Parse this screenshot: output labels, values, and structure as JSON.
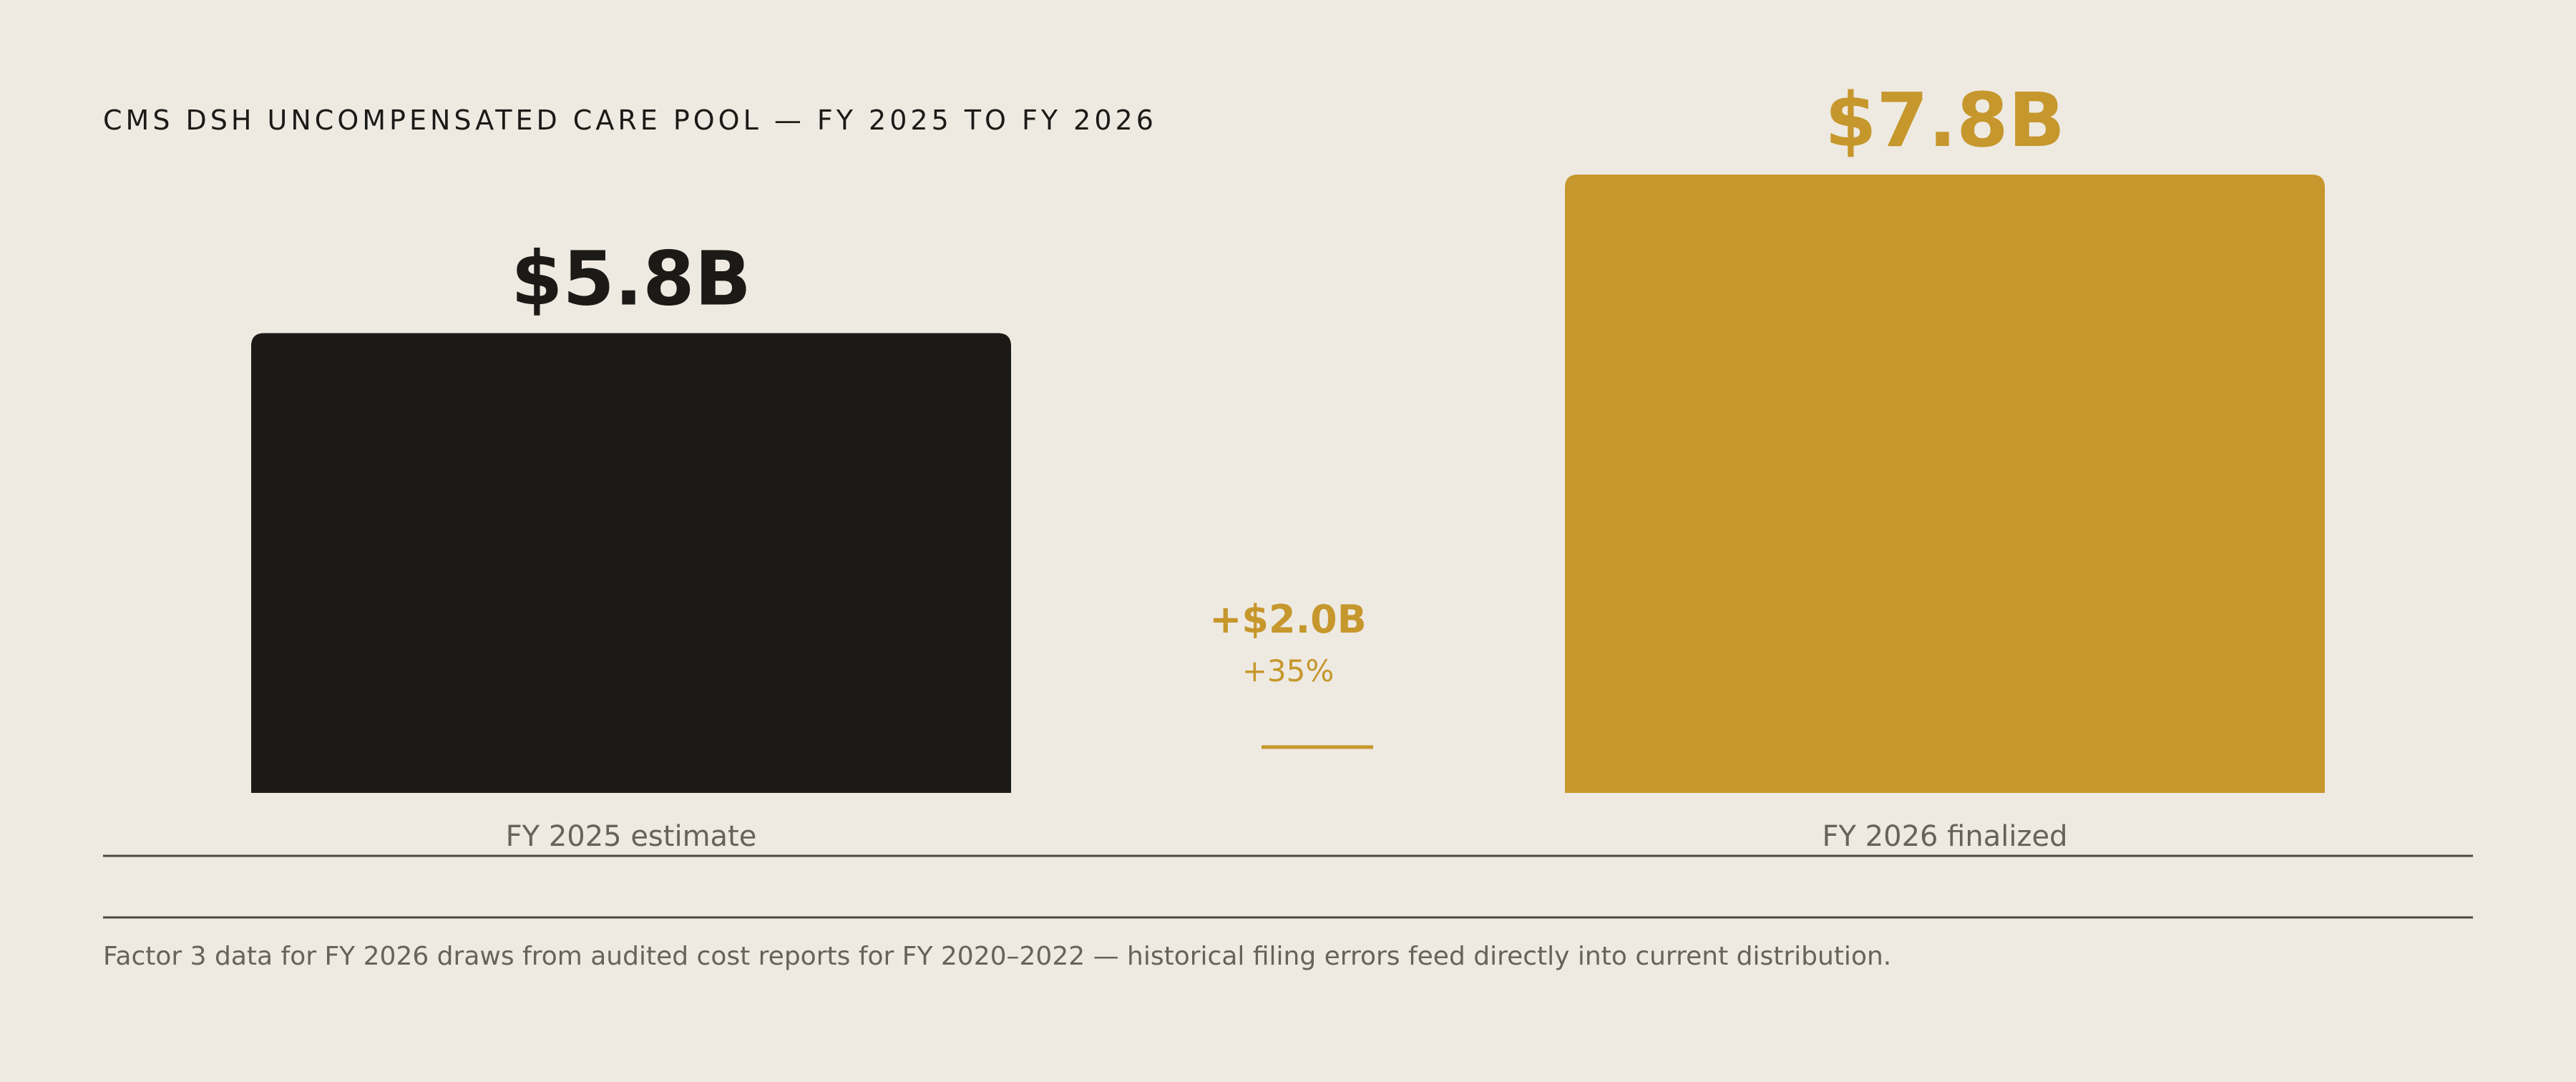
{
  "title": "CMS DSH UNCOMPENSATED CARE POOL — FY 2025 TO FY 2026",
  "footnote": "Factor 3 data for FY 2026 draws from audited cost reports for FY 2020–2022 — historical filing errors feed directly into current distribution.",
  "colors": {
    "background": "#EEEAE2",
    "fy2025_bar": "#1C1A17",
    "fy2026_bar": "#C6972C",
    "accent": "#C6972C",
    "axis_label": "#66625C",
    "rule": "#4A4641"
  },
  "chart_data": {
    "type": "bar",
    "title": "CMS DSH UNCOMPENSATED CARE POOL — FY 2025 TO FY 2026",
    "categories": [
      "FY 2025 estimate",
      "FY 2026 finalized"
    ],
    "values": [
      5.8,
      7.8
    ],
    "value_labels": [
      "$5.8B",
      "$7.8B"
    ],
    "unit": "$B",
    "ylim": [
      0,
      9.1
    ],
    "grid": false,
    "legend": "none",
    "annotation": {
      "change": "+$2.0B",
      "percent": "+35%"
    }
  }
}
